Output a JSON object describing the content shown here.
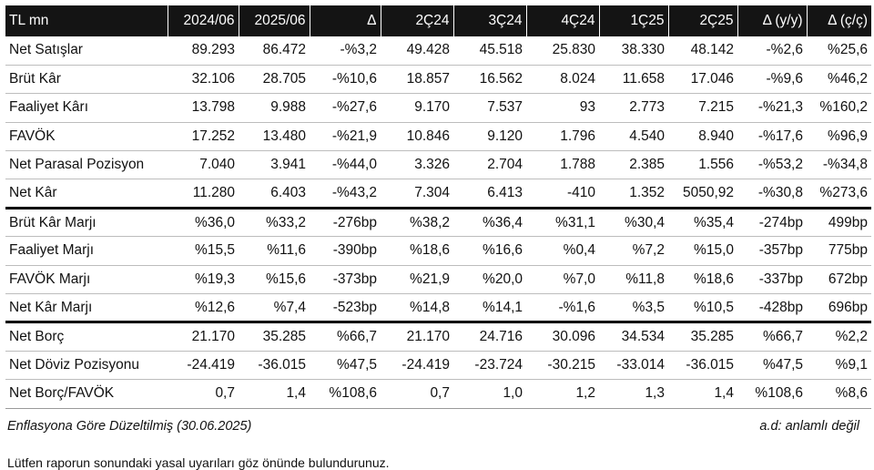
{
  "table": {
    "headers": [
      "TL mn",
      "2024/06",
      "2025/06",
      "Δ",
      "2Ç24",
      "3Ç24",
      "4Ç24",
      "1Ç25",
      "2Ç25",
      "Δ (y/y)",
      "Δ (ç/ç)"
    ],
    "rows": [
      [
        "Net Satışlar",
        "89.293",
        "86.472",
        "-%3,2",
        "49.428",
        "45.518",
        "25.830",
        "38.330",
        "48.142",
        "-%2,6",
        "%25,6"
      ],
      [
        "Brüt Kâr",
        "32.106",
        "28.705",
        "-%10,6",
        "18.857",
        "16.562",
        "8.024",
        "11.658",
        "17.046",
        "-%9,6",
        "%46,2"
      ],
      [
        "Faaliyet Kârı",
        "13.798",
        "9.988",
        "-%27,6",
        "9.170",
        "7.537",
        "93",
        "2.773",
        "7.215",
        "-%21,3",
        "%160,2"
      ],
      [
        "FAVÖK",
        "17.252",
        "13.480",
        "-%21,9",
        "10.846",
        "9.120",
        "1.796",
        "4.540",
        "8.940",
        "-%17,6",
        "%96,9"
      ],
      [
        "Net Parasal Pozisyon",
        "7.040",
        "3.941",
        "-%44,0",
        "3.326",
        "2.704",
        "1.788",
        "2.385",
        "1.556",
        "-%53,2",
        "-%34,8"
      ],
      [
        "Net Kâr",
        "11.280",
        "6.403",
        "-%43,2",
        "7.304",
        "6.413",
        "-410",
        "1.352",
        "5050,92",
        "-%30,8",
        "%273,6"
      ],
      [
        "Brüt Kâr Marjı",
        "%36,0",
        "%33,2",
        "-276bp",
        "%38,2",
        "%36,4",
        "%31,1",
        "%30,4",
        "%35,4",
        "-274bp",
        "499bp"
      ],
      [
        "Faaliyet Marjı",
        "%15,5",
        "%11,6",
        "-390bp",
        "%18,6",
        "%16,6",
        "%0,4",
        "%7,2",
        "%15,0",
        "-357bp",
        "775bp"
      ],
      [
        "FAVÖK Marjı",
        "%19,3",
        "%15,6",
        "-373bp",
        "%21,9",
        "%20,0",
        "%7,0",
        "%11,8",
        "%18,6",
        "-337bp",
        "672bp"
      ],
      [
        "Net Kâr Marjı",
        "%12,6",
        "%7,4",
        "-523bp",
        "%14,8",
        "%14,1",
        "-%1,6",
        "%3,5",
        "%10,5",
        "-428bp",
        "696bp"
      ],
      [
        "Net Borç",
        "21.170",
        "35.285",
        "%66,7",
        "21.170",
        "24.716",
        "30.096",
        "34.534",
        "35.285",
        "%66,7",
        "%2,2"
      ],
      [
        "Net Döviz Pozisyonu",
        "-24.419",
        "-36.015",
        "%47,5",
        "-24.419",
        "-23.724",
        "-30.215",
        "-33.014",
        "-36.015",
        "%47,5",
        "%9,1"
      ],
      [
        "Net Borç/FAVÖK",
        "0,7",
        "1,4",
        "%108,6",
        "0,7",
        "1,0",
        "1,2",
        "1,3",
        "1,4",
        "%108,6",
        "%8,6"
      ]
    ]
  },
  "footnote_left": "Enflasyona Göre Düzeltilmiş (30.06.2025)",
  "footnote_right": "a.d: anlamlı değil",
  "disclaimer": "Lütfen raporun sonundaki yasal uyarıları göz önünde bulundurunuz."
}
